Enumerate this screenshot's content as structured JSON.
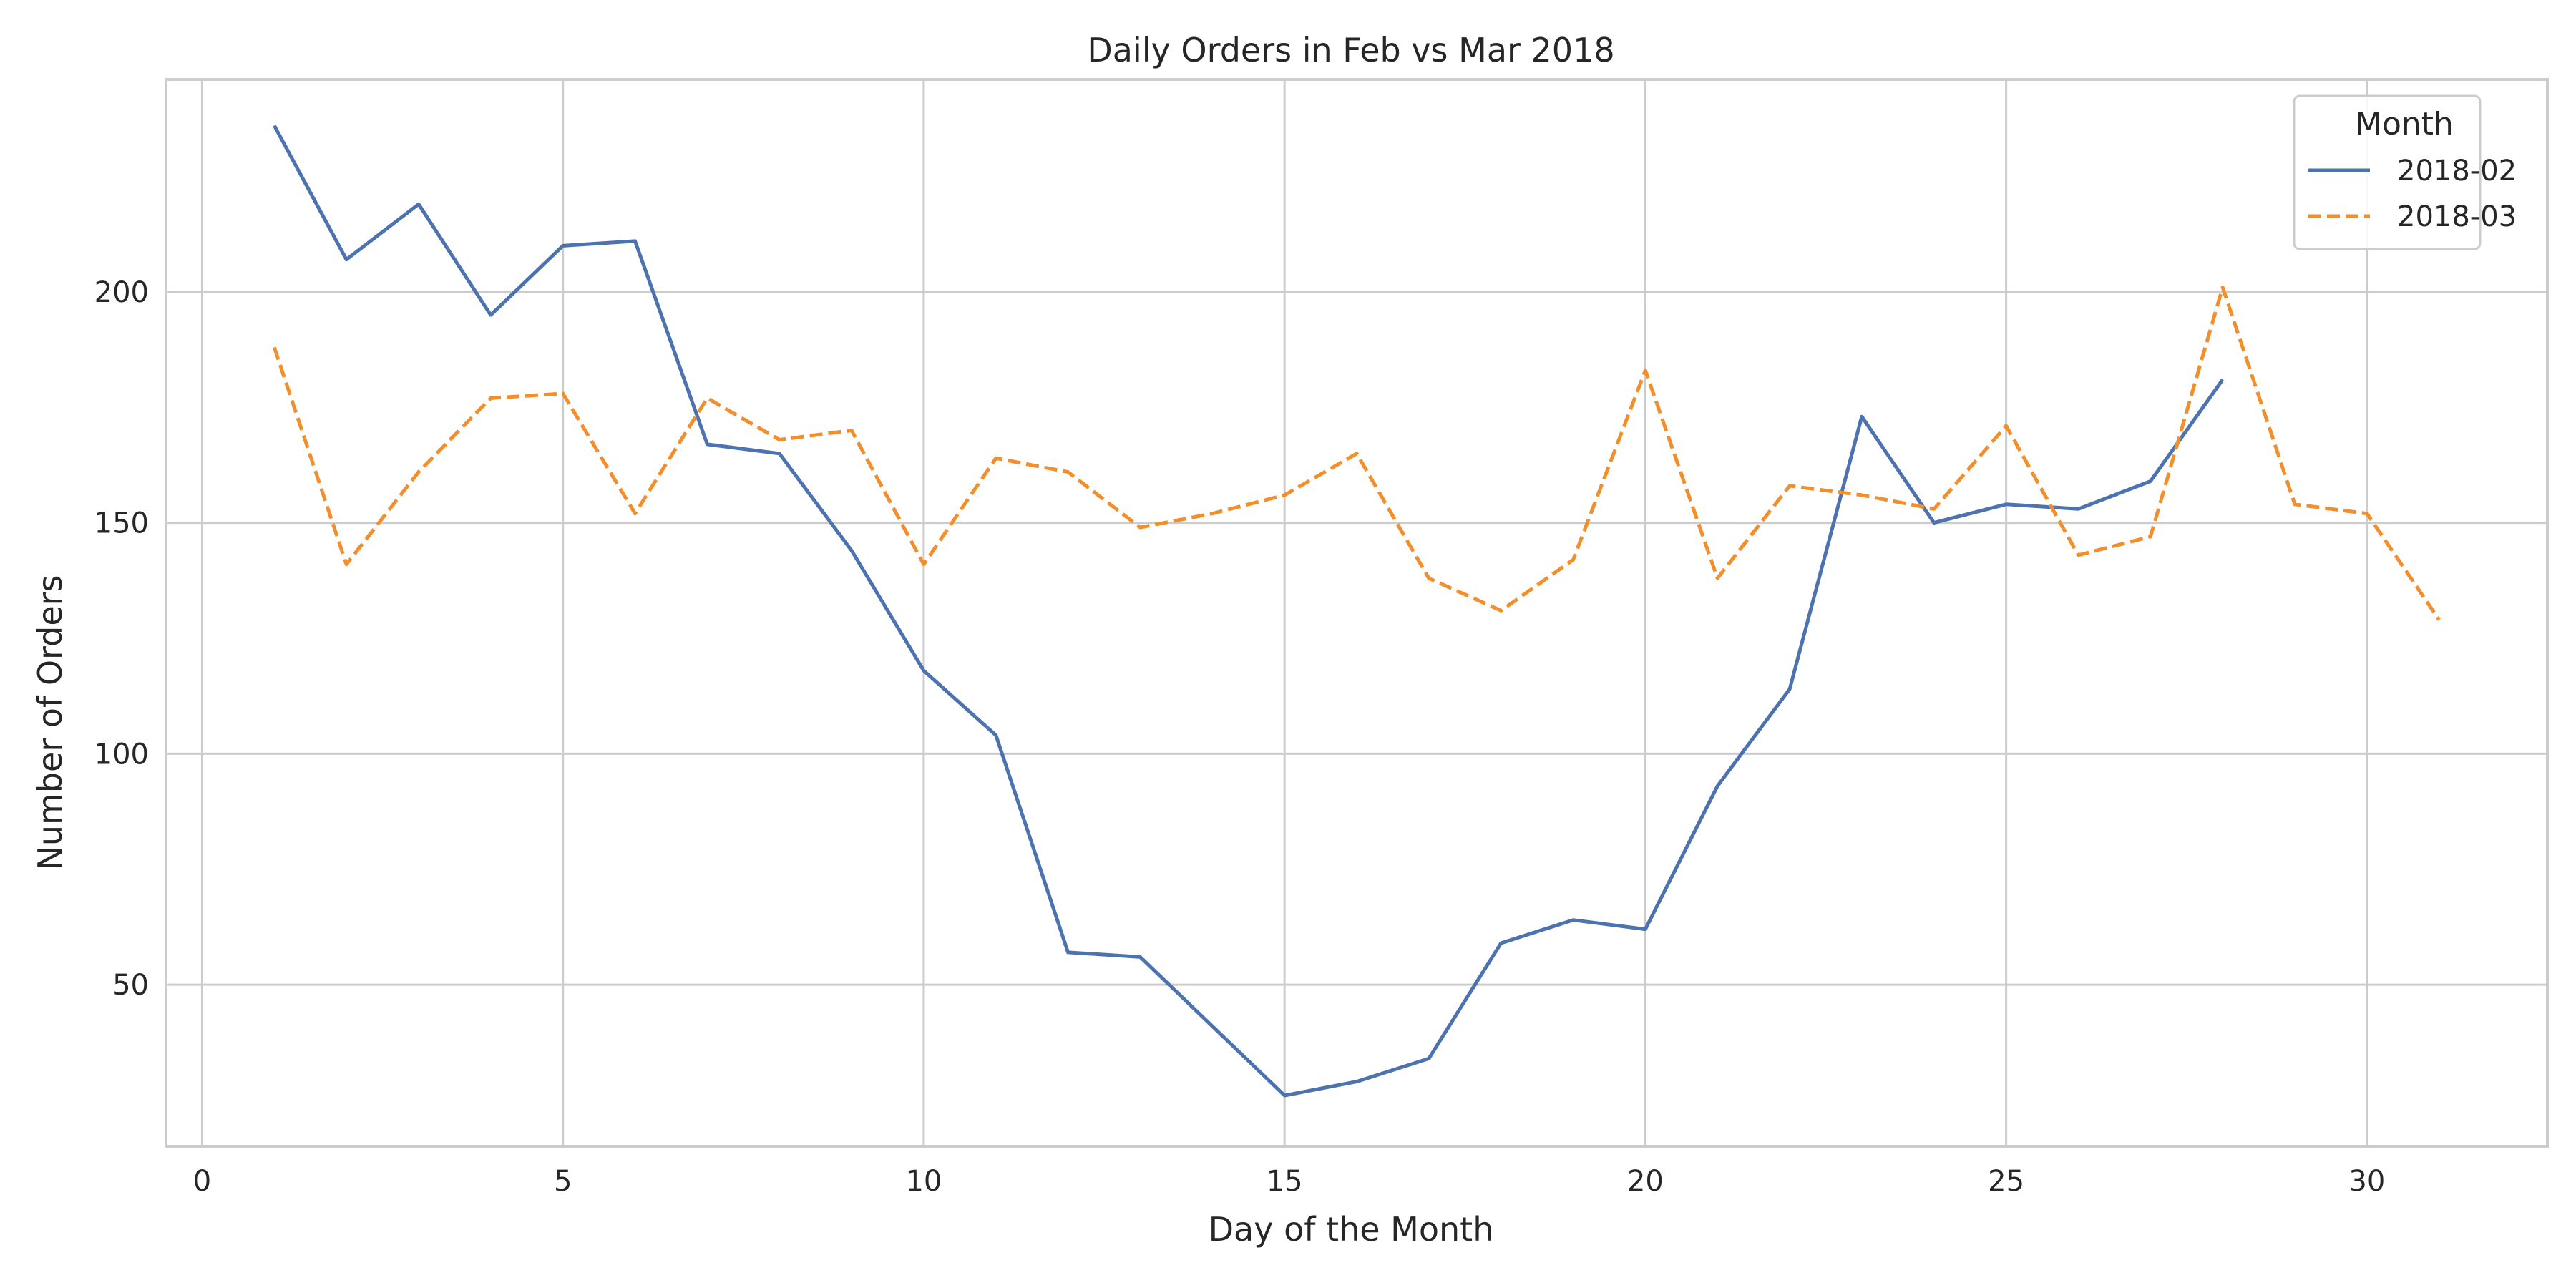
{
  "chart_data": {
    "type": "line",
    "title": "Daily Orders in Feb vs Mar 2018",
    "xlabel": "Day of the Month",
    "ylabel": "Number of Orders",
    "xlim": [
      -0.5,
      32.5
    ],
    "ylim": [
      15,
      246
    ],
    "xticks": [
      0,
      5,
      10,
      15,
      20,
      25,
      30
    ],
    "yticks": [
      50,
      100,
      150,
      200
    ],
    "grid": true,
    "legend": {
      "title": "Month",
      "position": "top-right"
    },
    "series": [
      {
        "name": "2018-02",
        "color": "#4c72b0",
        "dash": "solid",
        "x": [
          1,
          2,
          3,
          4,
          5,
          6,
          7,
          8,
          9,
          10,
          11,
          12,
          13,
          14,
          15,
          16,
          17,
          18,
          19,
          20,
          21,
          22,
          23,
          24,
          25,
          26,
          27,
          28
        ],
        "y": [
          236,
          207,
          219,
          195,
          210,
          211,
          167,
          165,
          144,
          118,
          104,
          57,
          56,
          41,
          26,
          29,
          34,
          59,
          64,
          62,
          93,
          114,
          173,
          150,
          154,
          153,
          159,
          181
        ]
      },
      {
        "name": "2018-03",
        "color": "#f28e2b",
        "dash": "dashed",
        "x": [
          1,
          2,
          3,
          4,
          5,
          6,
          7,
          8,
          9,
          10,
          11,
          12,
          13,
          14,
          15,
          16,
          17,
          18,
          19,
          20,
          21,
          22,
          23,
          24,
          25,
          26,
          27,
          28,
          29,
          30,
          31
        ],
        "y": [
          188,
          141,
          161,
          177,
          178,
          152,
          177,
          168,
          170,
          141,
          164,
          161,
          149,
          152,
          156,
          165,
          138,
          131,
          142,
          183,
          138,
          158,
          156,
          153,
          171,
          143,
          147,
          201,
          154,
          152,
          129
        ]
      }
    ]
  }
}
